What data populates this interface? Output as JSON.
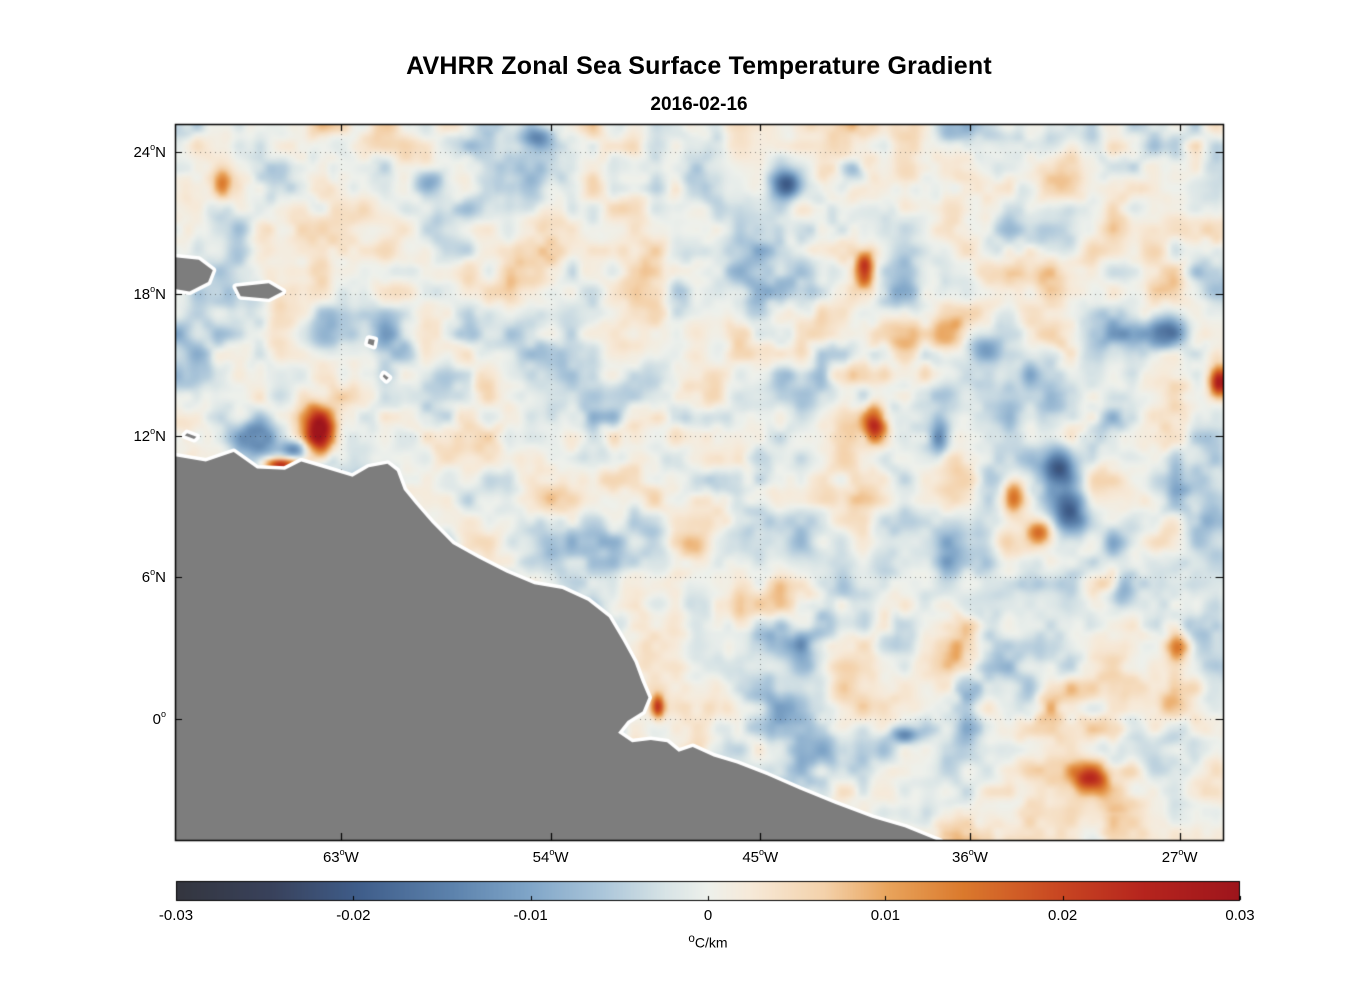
{
  "title": "AVHRR Zonal Sea Surface Temperature Gradient",
  "subtitle": "2016-02-16",
  "chart_data": {
    "type": "heatmap",
    "title": "AVHRR Zonal Sea Surface Temperature Gradient",
    "subtitle": "2016-02-16",
    "xlabel": "",
    "ylabel": "",
    "grid": "dotted",
    "lon_range": [
      -70.12,
      -25.14
    ],
    "lat_range": [
      -5.14,
      25.2
    ],
    "x_ticks": [
      {
        "label": "63°W",
        "lon": -63
      },
      {
        "label": "54°W",
        "lon": -54
      },
      {
        "label": "45°W",
        "lon": -45
      },
      {
        "label": "36°W",
        "lon": -36
      },
      {
        "label": "27°W",
        "lon": -27
      }
    ],
    "y_ticks": [
      {
        "label": "24°N",
        "lat": 24
      },
      {
        "label": "18°N",
        "lat": 18
      },
      {
        "label": "12°N",
        "lat": 12
      },
      {
        "label": "6°N",
        "lat": 6
      },
      {
        "label": "0°",
        "lat": 0
      }
    ],
    "colorbar": {
      "label": "°C/km",
      "range": [
        -0.03,
        0.03
      ],
      "values": [
        -0.03,
        -0.02,
        -0.01,
        0,
        0.01,
        0.02,
        0.03
      ],
      "ticks": [
        "-0.03",
        "-0.02",
        "-0.01",
        "0",
        "0.01",
        "0.02",
        "0.03"
      ],
      "stops": [
        [
          0.0,
          "#34363f"
        ],
        [
          0.09,
          "#39425c"
        ],
        [
          0.17,
          "#3f5d8a"
        ],
        [
          0.26,
          "#5d83ad"
        ],
        [
          0.33,
          "#7fa5c8"
        ],
        [
          0.4,
          "#abc6da"
        ],
        [
          0.46,
          "#d8e4e6"
        ],
        [
          0.5,
          "#eef1ec"
        ],
        [
          0.54,
          "#f7ead9"
        ],
        [
          0.61,
          "#f4d2ab"
        ],
        [
          0.67,
          "#e9a45c"
        ],
        [
          0.74,
          "#db7a2d"
        ],
        [
          0.83,
          "#c94722"
        ],
        [
          0.91,
          "#b6251e"
        ],
        [
          1.0,
          "#9e151c"
        ]
      ]
    },
    "land_color": "#7d7d7d",
    "coast_halo_color": "#ffffff",
    "noise": {
      "seeds": [
        11,
        23,
        37,
        53
      ],
      "amplitudes": [
        0.0068,
        0.0042,
        0.0016
      ],
      "scales": [
        13,
        5.2,
        2.6
      ],
      "mask_scale": 18,
      "mask_base": 0.7,
      "mask_gain": 0.75
    },
    "features": [
      {
        "lon": -63.9,
        "lat": 12.2,
        "amp": 0.034,
        "sx": 0.42,
        "sy": 0.72
      },
      {
        "lon": -66.4,
        "lat": 11.9,
        "amp": -0.02,
        "sx": 0.75,
        "sy": 0.5
      },
      {
        "lon": -64.9,
        "lat": 11.4,
        "amp": -0.016,
        "sx": 0.4,
        "sy": 0.3
      },
      {
        "lon": -65.6,
        "lat": 10.75,
        "amp": 0.027,
        "sx": 0.5,
        "sy": 0.22
      },
      {
        "lon": -59.2,
        "lat": 22.8,
        "amp": -0.013,
        "sx": 0.5,
        "sy": 0.45
      },
      {
        "lon": -54.5,
        "lat": 24.6,
        "amp": -0.012,
        "sx": 0.5,
        "sy": 0.35
      },
      {
        "lon": -68.1,
        "lat": 22.6,
        "amp": 0.015,
        "sx": 0.3,
        "sy": 0.45
      },
      {
        "lon": -43.8,
        "lat": 22.6,
        "amp": -0.018,
        "sx": 0.5,
        "sy": 0.42
      },
      {
        "lon": -41.0,
        "lat": 23.2,
        "amp": -0.013,
        "sx": 0.45,
        "sy": 0.4
      },
      {
        "lon": -40.5,
        "lat": 19.1,
        "amp": 0.024,
        "sx": 0.3,
        "sy": 0.55
      },
      {
        "lon": -40.1,
        "lat": 12.5,
        "amp": 0.021,
        "sx": 0.35,
        "sy": 0.5
      },
      {
        "lon": -37.3,
        "lat": 11.9,
        "amp": -0.013,
        "sx": 0.3,
        "sy": 0.6
      },
      {
        "lon": -32.2,
        "lat": 10.7,
        "amp": -0.021,
        "sx": 0.55,
        "sy": 0.6
      },
      {
        "lon": -31.7,
        "lat": 8.7,
        "amp": -0.017,
        "sx": 0.5,
        "sy": 0.7
      },
      {
        "lon": -34.1,
        "lat": 9.4,
        "amp": 0.019,
        "sx": 0.35,
        "sy": 0.55
      },
      {
        "lon": -33.0,
        "lat": 7.9,
        "amp": 0.015,
        "sx": 0.35,
        "sy": 0.35
      },
      {
        "lon": -25.3,
        "lat": 14.3,
        "amp": 0.03,
        "sx": 0.3,
        "sy": 0.45
      },
      {
        "lon": -27.5,
        "lat": 16.5,
        "amp": -0.012,
        "sx": 0.5,
        "sy": 0.5
      },
      {
        "lon": -35.5,
        "lat": 16.0,
        "amp": -0.01,
        "sx": 0.6,
        "sy": 0.5
      },
      {
        "lon": -30.8,
        "lat": -2.5,
        "amp": 0.02,
        "sx": 0.5,
        "sy": 0.45
      },
      {
        "lon": -49.4,
        "lat": 0.5,
        "amp": 0.022,
        "sx": 0.2,
        "sy": 0.35
      },
      {
        "lon": -38.8,
        "lat": -0.7,
        "amp": -0.013,
        "sx": 0.45,
        "sy": 0.25
      },
      {
        "lon": -29.5,
        "lat": 5.5,
        "amp": -0.012,
        "sx": 0.4,
        "sy": 0.5
      },
      {
        "lon": -27.0,
        "lat": 3.0,
        "amp": 0.013,
        "sx": 0.4,
        "sy": 0.4
      }
    ],
    "land_polygons": [
      [
        [
          -70.6,
          11.2
        ],
        [
          -68.8,
          10.9
        ],
        [
          -67.6,
          11.3
        ],
        [
          -66.6,
          10.6
        ],
        [
          -65.4,
          10.55
        ],
        [
          -64.7,
          10.9
        ],
        [
          -63.5,
          10.55
        ],
        [
          -62.5,
          10.25
        ],
        [
          -61.8,
          10.65
        ],
        [
          -61.0,
          10.8
        ],
        [
          -60.6,
          10.5
        ],
        [
          -60.3,
          9.7
        ],
        [
          -59.8,
          9.1
        ],
        [
          -59.1,
          8.3
        ],
        [
          -58.2,
          7.4
        ],
        [
          -57.1,
          6.8
        ],
        [
          -55.9,
          6.2
        ],
        [
          -54.7,
          5.7
        ],
        [
          -53.5,
          5.5
        ],
        [
          -52.4,
          5.0
        ],
        [
          -51.5,
          4.3
        ],
        [
          -50.9,
          3.3
        ],
        [
          -50.4,
          2.4
        ],
        [
          -50.1,
          1.6
        ],
        [
          -49.8,
          0.9
        ],
        [
          -50.05,
          0.3
        ],
        [
          -50.7,
          -0.1
        ],
        [
          -51.1,
          -0.6
        ],
        [
          -50.5,
          -1.0
        ],
        [
          -49.7,
          -0.9
        ],
        [
          -49.0,
          -1.0
        ],
        [
          -48.5,
          -1.4
        ],
        [
          -47.9,
          -1.2
        ],
        [
          -47.0,
          -1.6
        ],
        [
          -46.0,
          -1.9
        ],
        [
          -44.7,
          -2.4
        ],
        [
          -43.3,
          -3.0
        ],
        [
          -41.8,
          -3.6
        ],
        [
          -40.2,
          -4.2
        ],
        [
          -38.8,
          -4.6
        ],
        [
          -37.3,
          -5.2
        ],
        [
          -37.0,
          -5.6
        ],
        [
          -70.6,
          -5.6
        ]
      ],
      [
        [
          -70.6,
          19.6
        ],
        [
          -69.1,
          19.45
        ],
        [
          -68.5,
          19.0
        ],
        [
          -68.7,
          18.5
        ],
        [
          -69.5,
          18.1
        ],
        [
          -70.6,
          18.3
        ]
      ],
      [
        [
          -67.5,
          18.3
        ],
        [
          -66.1,
          18.45
        ],
        [
          -65.5,
          18.1
        ],
        [
          -66.1,
          17.8
        ],
        [
          -67.3,
          17.9
        ]
      ],
      [
        [
          -61.8,
          16.1
        ],
        [
          -61.55,
          16.05
        ],
        [
          -61.6,
          15.8
        ],
        [
          -61.85,
          15.9
        ]
      ],
      [
        [
          -61.15,
          14.6
        ],
        [
          -60.95,
          14.45
        ],
        [
          -61.05,
          14.35
        ],
        [
          -61.2,
          14.5
        ]
      ],
      [
        [
          -69.6,
          12.1
        ],
        [
          -69.2,
          11.95
        ],
        [
          -69.3,
          11.85
        ],
        [
          -69.7,
          12.0
        ]
      ]
    ]
  }
}
